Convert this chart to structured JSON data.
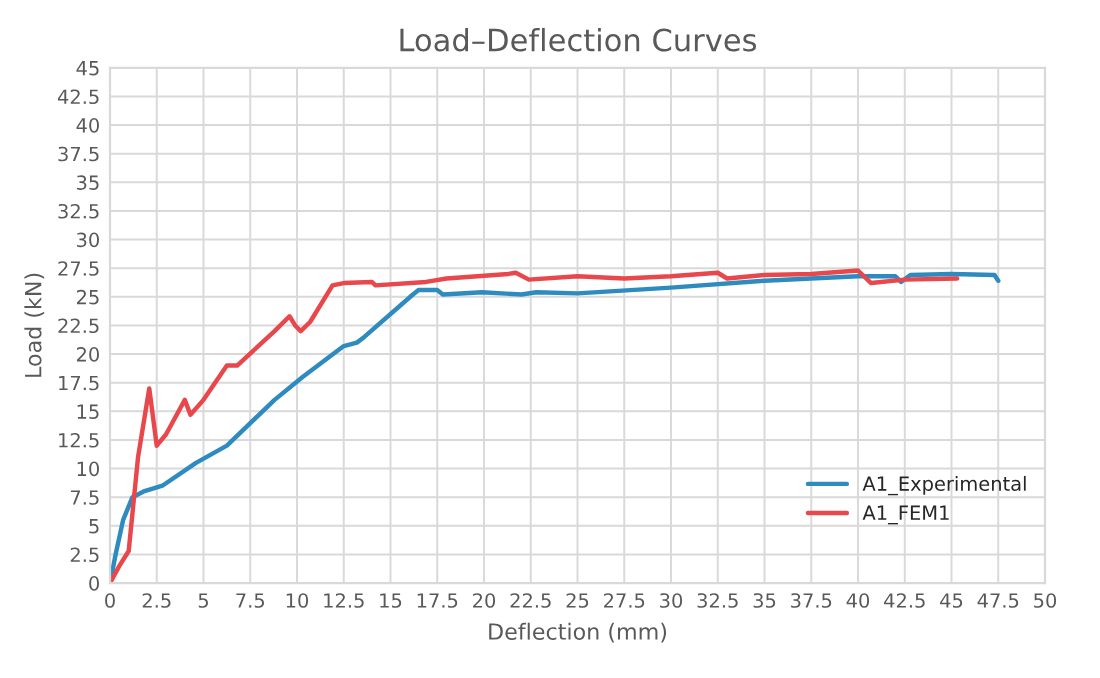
{
  "chart_data": {
    "type": "line",
    "title": "Load–Deflection Curves",
    "xlabel": "Deflection (mm)",
    "ylabel": "Load (kN)",
    "xlim": [
      0,
      50
    ],
    "xticks": [
      0,
      2.5,
      5,
      7.5,
      10,
      12.5,
      15,
      17.5,
      20,
      22.5,
      25,
      27.5,
      30,
      32.5,
      35,
      37.5,
      40,
      42.5,
      45,
      47.5,
      50
    ],
    "ylim": [
      0,
      45
    ],
    "yticks": [
      0,
      2.5,
      5,
      7.5,
      10,
      12.5,
      15,
      17.5,
      20,
      22.5,
      25,
      27.5,
      30,
      32.5,
      35,
      37.5,
      40,
      42.5,
      45
    ],
    "grid": true,
    "legend": "lower right",
    "line_style": "solid",
    "marker": "none",
    "series": [
      {
        "name": "A1_Experimental",
        "color": "#2e8bc0",
        "x": [
          0,
          0.3,
          0.7,
          1.2,
          1.8,
          2.2,
          2.8,
          4.6,
          6.25,
          8.8,
          10.3,
          12.5,
          13.2,
          13.6,
          16.2,
          16.5,
          17.5,
          17.8,
          19.9,
          22,
          22.8,
          25,
          30,
          35,
          40,
          42,
          42.3,
          42.8,
          45,
          47.3,
          47.5
        ],
        "values": [
          0,
          2.5,
          5.5,
          7.5,
          8,
          8.2,
          8.5,
          10.5,
          12,
          16,
          18,
          20.7,
          21,
          21.5,
          25.2,
          25.6,
          25.6,
          25.2,
          25.4,
          25.2,
          25.4,
          25.3,
          25.8,
          26.4,
          26.8,
          26.8,
          26.3,
          26.9,
          27,
          26.9,
          26.4
        ]
      },
      {
        "name": "A1_FEM1",
        "color": "#e8474c",
        "x": [
          0,
          0.5,
          1,
          1.5,
          2.1,
          2.5,
          3,
          4,
          4.3,
          5,
          6.25,
          6.8,
          8.8,
          9.6,
          9.9,
          10.2,
          10.7,
          11.9,
          12.5,
          14,
          14.2,
          16.9,
          18,
          21.3,
          21.7,
          22.4,
          25,
          27.5,
          30,
          32.5,
          33,
          35,
          37.5,
          40,
          40.7,
          42.5,
          45.3
        ],
        "values": [
          0,
          1.5,
          2.8,
          11,
          17,
          12,
          13,
          16,
          14.7,
          16,
          19,
          19,
          22,
          23.3,
          22.5,
          22,
          22.8,
          26,
          26.2,
          26.3,
          26,
          26.3,
          26.6,
          27,
          27.1,
          26.5,
          26.8,
          26.6,
          26.8,
          27.1,
          26.6,
          26.9,
          27,
          27.3,
          26.2,
          26.5,
          26.6
        ]
      }
    ]
  }
}
